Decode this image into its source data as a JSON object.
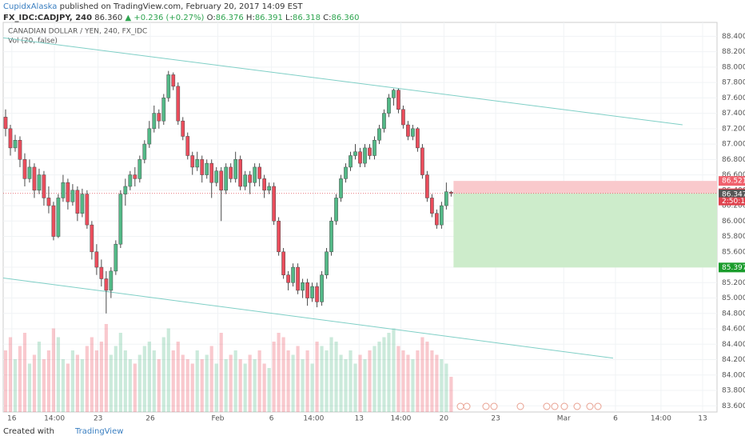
{
  "header": {
    "author": "CupidxAlaska",
    "published": "published on TradingView.com, February 20, 2017 14:09 EST",
    "symbol": "FX_IDC:CADJPY, 240",
    "last": "86.360",
    "change": "▲ +0.236 (+0.27%)",
    "o_label": "O:",
    "open": "86.376",
    "h_label": "H:",
    "high": "86.391",
    "l_label": "L:",
    "low": "86.318",
    "c_label": "C:",
    "close": "86.360"
  },
  "chart_data": {
    "type": "candlestick",
    "title": "CANADIAN DOLLAR / YEN, 240, FX_IDC",
    "volume_label": "Vol (20, false)",
    "up_color": "#53b987",
    "down_color": "#eb4d5c",
    "grid": true,
    "candles": [
      [
        87.35,
        87.45,
        87.1,
        87.2
      ],
      [
        87.2,
        87.25,
        86.85,
        86.95
      ],
      [
        86.95,
        87.12,
        86.9,
        87.05
      ],
      [
        87.05,
        87.1,
        86.7,
        86.8
      ],
      [
        86.8,
        86.88,
        86.45,
        86.55
      ],
      [
        86.55,
        86.8,
        86.5,
        86.7
      ],
      [
        86.7,
        86.75,
        86.3,
        86.4
      ],
      [
        86.4,
        86.68,
        86.35,
        86.6
      ],
      [
        86.6,
        86.65,
        86.2,
        86.3
      ],
      [
        86.3,
        86.45,
        86.1,
        86.2
      ],
      [
        86.2,
        86.25,
        85.75,
        85.8
      ],
      [
        85.8,
        86.35,
        85.78,
        86.3
      ],
      [
        86.3,
        86.6,
        86.25,
        86.5
      ],
      [
        86.5,
        86.55,
        86.15,
        86.25
      ],
      [
        86.25,
        86.48,
        86.2,
        86.4
      ],
      [
        86.4,
        86.45,
        86,
        86.1
      ],
      [
        86.1,
        86.42,
        86.05,
        86.35
      ],
      [
        86.35,
        86.4,
        85.9,
        85.95
      ],
      [
        85.95,
        86,
        85.5,
        85.6
      ],
      [
        85.6,
        85.7,
        85.3,
        85.4
      ],
      [
        85.4,
        85.5,
        85.15,
        85.25
      ],
      [
        85.25,
        85.35,
        84.8,
        85.1
      ],
      [
        85.1,
        85.4,
        85,
        85.35
      ],
      [
        85.35,
        85.75,
        85.3,
        85.7
      ],
      [
        85.7,
        86.4,
        85.65,
        86.35
      ],
      [
        86.35,
        86.55,
        86.2,
        86.45
      ],
      [
        86.45,
        86.65,
        86.4,
        86.6
      ],
      [
        86.6,
        86.7,
        86.45,
        86.55
      ],
      [
        86.55,
        86.85,
        86.5,
        86.8
      ],
      [
        86.8,
        87.05,
        86.75,
        87
      ],
      [
        87,
        87.3,
        86.95,
        87.2
      ],
      [
        87.2,
        87.5,
        87.15,
        87.4
      ],
      [
        87.4,
        87.45,
        87.2,
        87.3
      ],
      [
        87.3,
        87.65,
        87.25,
        87.6
      ],
      [
        87.6,
        87.95,
        87.55,
        87.9
      ],
      [
        87.9,
        87.93,
        87.7,
        87.75
      ],
      [
        87.75,
        87.8,
        87.25,
        87.3
      ],
      [
        87.3,
        87.35,
        87.05,
        87.1
      ],
      [
        87.1,
        87.15,
        86.8,
        86.85
      ],
      [
        86.85,
        86.9,
        86.6,
        86.7
      ],
      [
        86.7,
        86.9,
        86.65,
        86.8
      ],
      [
        86.8,
        86.85,
        86.5,
        86.6
      ],
      [
        86.6,
        86.8,
        86.55,
        86.75
      ],
      [
        86.75,
        86.8,
        86.3,
        86.5
      ],
      [
        86.5,
        86.7,
        86.45,
        86.65
      ],
      [
        86.65,
        86.7,
        86,
        86.4
      ],
      [
        86.4,
        86.75,
        86.35,
        86.7
      ],
      [
        86.7,
        86.75,
        86.5,
        86.55
      ],
      [
        86.55,
        86.9,
        86.5,
        86.8
      ],
      [
        86.8,
        86.85,
        86.4,
        86.45
      ],
      [
        86.45,
        86.65,
        86.4,
        86.6
      ],
      [
        86.6,
        86.65,
        86.35,
        86.5
      ],
      [
        86.5,
        86.75,
        86.45,
        86.7
      ],
      [
        86.7,
        86.75,
        86.45,
        86.55
      ],
      [
        86.55,
        86.6,
        86.3,
        86.4
      ],
      [
        86.4,
        86.5,
        86.35,
        86.45
      ],
      [
        86.45,
        86.5,
        85.95,
        86
      ],
      [
        86,
        86.05,
        85.55,
        85.6
      ],
      [
        85.6,
        85.65,
        85.25,
        85.3
      ],
      [
        85.3,
        85.35,
        85.1,
        85.2
      ],
      [
        85.2,
        85.45,
        85.15,
        85.4
      ],
      [
        85.4,
        85.45,
        85.05,
        85.1
      ],
      [
        85.1,
        85.25,
        85,
        85.2
      ],
      [
        85.2,
        85.25,
        84.9,
        85
      ],
      [
        85,
        85.2,
        84.95,
        85.15
      ],
      [
        85.15,
        85.2,
        84.88,
        84.95
      ],
      [
        84.95,
        85.35,
        84.9,
        85.3
      ],
      [
        85.3,
        85.65,
        85.25,
        85.6
      ],
      [
        85.6,
        86.05,
        85.55,
        86
      ],
      [
        86,
        86.35,
        85.95,
        86.3
      ],
      [
        86.3,
        86.6,
        86.25,
        86.55
      ],
      [
        86.55,
        86.75,
        86.5,
        86.7
      ],
      [
        86.7,
        86.9,
        86.65,
        86.85
      ],
      [
        86.85,
        87,
        86.8,
        86.9
      ],
      [
        86.9,
        86.95,
        86.7,
        86.75
      ],
      [
        86.75,
        87,
        86.7,
        86.95
      ],
      [
        86.95,
        87,
        86.8,
        86.85
      ],
      [
        86.85,
        87.1,
        86.8,
        87.05
      ],
      [
        87.05,
        87.25,
        87,
        87.2
      ],
      [
        87.2,
        87.45,
        87.15,
        87.4
      ],
      [
        87.4,
        87.65,
        87.35,
        87.6
      ],
      [
        87.6,
        87.72,
        87.5,
        87.7
      ],
      [
        87.7,
        87.72,
        87.4,
        87.45
      ],
      [
        87.45,
        87.5,
        87.2,
        87.25
      ],
      [
        87.25,
        87.3,
        87.05,
        87.1
      ],
      [
        87.1,
        87.25,
        87.05,
        87.2
      ],
      [
        87.2,
        87.22,
        86.9,
        86.95
      ],
      [
        86.95,
        87,
        86.55,
        86.6
      ],
      [
        86.6,
        86.65,
        86.25,
        86.3
      ],
      [
        86.3,
        86.35,
        86.05,
        86.1
      ],
      [
        86.1,
        86.15,
        85.9,
        85.95
      ],
      [
        85.95,
        86.25,
        85.9,
        86.2
      ],
      [
        86.2,
        86.5,
        86.15,
        86.38
      ],
      [
        86.376,
        86.391,
        86.318,
        86.36
      ]
    ],
    "volume": [
      70,
      85,
      60,
      75,
      90,
      55,
      65,
      80,
      60,
      70,
      95,
      85,
      60,
      55,
      70,
      65,
      60,
      75,
      85,
      70,
      80,
      100,
      65,
      75,
      90,
      70,
      60,
      55,
      65,
      75,
      80,
      70,
      60,
      85,
      95,
      70,
      80,
      65,
      60,
      55,
      70,
      60,
      65,
      75,
      55,
      90,
      60,
      65,
      70,
      60,
      55,
      65,
      60,
      70,
      55,
      50,
      80,
      90,
      85,
      70,
      65,
      75,
      60,
      70,
      55,
      80,
      75,
      70,
      85,
      80,
      65,
      60,
      70,
      55,
      65,
      60,
      70,
      75,
      80,
      85,
      90,
      95,
      75,
      70,
      65,
      60,
      70,
      85,
      80,
      70,
      65,
      60,
      55,
      40
    ],
    "xlim": [
      -0.5,
      148.5
    ],
    "xticks": [
      {
        "value": 1.3,
        "label": "16"
      },
      {
        "value": 10.2,
        "label": "14:00"
      },
      {
        "value": 19.3,
        "label": "23"
      },
      {
        "value": 30.2,
        "label": "26"
      },
      {
        "value": 44.3,
        "label": "Feb"
      },
      {
        "value": 55.5,
        "label": "6"
      },
      {
        "value": 64.3,
        "label": "14:00"
      },
      {
        "value": 73.8,
        "label": "13"
      },
      {
        "value": 82.5,
        "label": "14:00"
      },
      {
        "value": 91.5,
        "label": "20"
      },
      {
        "value": 102.3,
        "label": "23"
      },
      {
        "value": 116.5,
        "label": "Mar"
      },
      {
        "value": 127.3,
        "label": "6"
      },
      {
        "value": 136.8,
        "label": "14:00"
      },
      {
        "value": 145.5,
        "label": "13"
      }
    ],
    "ylim": [
      83.52,
      88.58
    ],
    "yticks": [
      {
        "value": 83.6,
        "label": "83.600"
      },
      {
        "value": 83.8,
        "label": "83.800"
      },
      {
        "value": 84,
        "label": "84.000"
      },
      {
        "value": 84.2,
        "label": "84.200"
      },
      {
        "value": 84.4,
        "label": "84.400"
      },
      {
        "value": 84.6,
        "label": "84.600"
      },
      {
        "value": 84.8,
        "label": "84.800"
      },
      {
        "value": 85,
        "label": "85.000"
      },
      {
        "value": 85.2,
        "label": "85.200"
      },
      {
        "value": 85.4,
        "label": "85.400"
      },
      {
        "value": 85.6,
        "label": "85.600"
      },
      {
        "value": 85.8,
        "label": "85.800"
      },
      {
        "value": 86,
        "label": "86.000"
      },
      {
        "value": 86.2,
        "label": "86.200"
      },
      {
        "value": 86.4,
        "label": "86.400"
      },
      {
        "value": 86.6,
        "label": "86.600"
      },
      {
        "value": 86.8,
        "label": "86.800"
      },
      {
        "value": 87,
        "label": "87.000"
      },
      {
        "value": 87.2,
        "label": "87.200"
      },
      {
        "value": 87.4,
        "label": "87.400"
      },
      {
        "value": 87.6,
        "label": "87.600"
      },
      {
        "value": 87.8,
        "label": "87.800"
      },
      {
        "value": 88,
        "label": "88.000"
      },
      {
        "value": 88.2,
        "label": "88.200"
      },
      {
        "value": 88.4,
        "label": "88.400"
      }
    ],
    "trend_color": "#7fcfc6",
    "trend_lines": [
      {
        "x": [
          -0.5,
          141.3
        ],
        "y": [
          88.38,
          87.25
        ]
      },
      {
        "x": [
          -0.5,
          126.8
        ],
        "y": [
          85.26,
          84.22
        ]
      }
    ],
    "position": {
      "x_start": 94,
      "entry": 86.36,
      "stop": 86.521,
      "target": 85.397
    },
    "price_labels": [
      {
        "value": 86.521,
        "label": "86.521",
        "color": "#f0616d"
      },
      {
        "value": 86.36,
        "label": "86.360",
        "color": "#e0444f"
      },
      {
        "value": 86.347,
        "label": "86.347",
        "color": "#555555"
      },
      {
        "value": 85.397,
        "label": "85.397",
        "color": "#1a9c2c"
      }
    ],
    "countdown": "2:50:10"
  },
  "footer": {
    "created": "Created with",
    "brand": "TradingView"
  }
}
